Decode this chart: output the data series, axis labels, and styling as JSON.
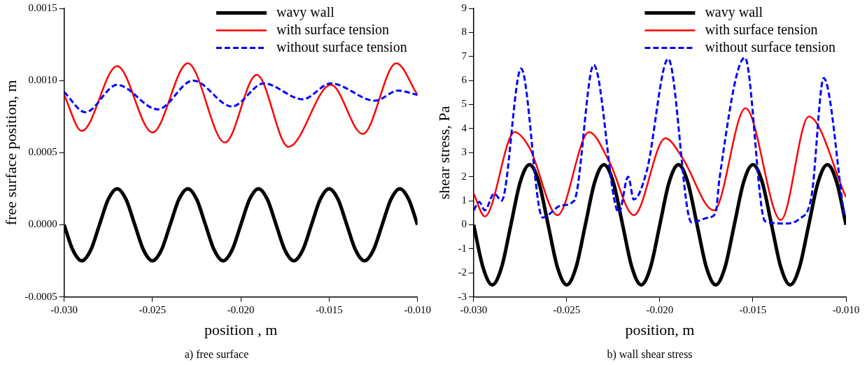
{
  "chart_data": [
    {
      "type": "line",
      "xlabel": "position , m",
      "ylabel": "free surface position, m",
      "xlim": [
        -0.03,
        -0.01
      ],
      "ylim": [
        -0.0005,
        0.0015
      ],
      "xticks": [
        {
          "value": -0.03,
          "label": "-0.030"
        },
        {
          "value": -0.025,
          "label": "-0.025"
        },
        {
          "value": -0.02,
          "label": "-0.020"
        },
        {
          "value": -0.015,
          "label": "-0.015"
        },
        {
          "value": -0.01,
          "label": "-0.010"
        }
      ],
      "yticks": [
        {
          "value": -0.0005,
          "label": "-0.0005"
        },
        {
          "value": 0,
          "label": "0.0000"
        },
        {
          "value": 0.0005,
          "label": "0.0005"
        },
        {
          "value": 0.001,
          "label": "0.0010"
        },
        {
          "value": 0.0015,
          "label": "0.0015"
        }
      ],
      "grid": false,
      "legend": "top right",
      "marker": "none",
      "annotations": [
        "a) free surface"
      ],
      "series": [
        {
          "name": "wavy wall",
          "color": "#000000",
          "line_style": "solid",
          "x": [
            -0.03,
            -0.0295,
            -0.029,
            -0.0285,
            -0.028,
            -0.0275,
            -0.027,
            -0.0265,
            -0.026,
            -0.0255,
            -0.025,
            -0.0245,
            -0.024,
            -0.0235,
            -0.023,
            -0.0225,
            -0.022,
            -0.0215,
            -0.021,
            -0.0205,
            -0.02,
            -0.0195,
            -0.019,
            -0.0185,
            -0.018,
            -0.0175,
            -0.017,
            -0.0165,
            -0.016,
            -0.0155,
            -0.015,
            -0.0145,
            -0.014,
            -0.0135,
            -0.013,
            -0.0125,
            -0.012,
            -0.0115,
            -0.011,
            -0.0105,
            -0.01
          ],
          "values": [
            0,
            -0.000177,
            -0.00025,
            -0.000177,
            0,
            0.000177,
            0.00025,
            0.000177,
            0,
            -0.000177,
            -0.00025,
            -0.000177,
            0,
            0.000177,
            0.00025,
            0.000177,
            0,
            -0.000177,
            -0.00025,
            -0.000177,
            0,
            0.000177,
            0.00025,
            0.000177,
            0,
            -0.000177,
            -0.00025,
            -0.000177,
            0,
            0.000177,
            0.00025,
            0.000177,
            0,
            -0.000177,
            -0.00025,
            -0.000177,
            0,
            0.000177,
            0.00025,
            0.000177,
            0
          ]
        },
        {
          "name": "with surface tension",
          "color": "#ff0000",
          "line_style": "solid",
          "x": [
            -0.03,
            -0.029,
            -0.027,
            -0.025,
            -0.023,
            -0.0209,
            -0.0191,
            -0.0173,
            -0.0149,
            -0.0131,
            -0.0112,
            -0.01
          ],
          "values": [
            0.0009,
            0.00065,
            0.0011,
            0.00064,
            0.00112,
            0.00057,
            0.00104,
            0.00054,
            0.00097,
            0.00063,
            0.00112,
            0.0009
          ]
        },
        {
          "name": "without surface tension",
          "color": "#0000ff",
          "line_style": "dashed",
          "x": [
            -0.03,
            -0.0288,
            -0.027,
            -0.0247,
            -0.0227,
            -0.0205,
            -0.0187,
            -0.0165,
            -0.0149,
            -0.0124,
            -0.0111,
            -0.01
          ],
          "values": [
            0.00092,
            0.00078,
            0.00097,
            0.0008,
            0.001,
            0.00082,
            0.00098,
            0.00087,
            0.00098,
            0.00086,
            0.00093,
            0.0009
          ]
        }
      ]
    },
    {
      "type": "line",
      "xlabel": "position, m",
      "ylabel": "shear stress, Pa",
      "xlim": [
        -0.03,
        -0.01
      ],
      "ylim": [
        -3,
        9
      ],
      "xticks": [
        {
          "value": -0.03,
          "label": "-0.030"
        },
        {
          "value": -0.025,
          "label": "-0.025"
        },
        {
          "value": -0.02,
          "label": "-0.020"
        },
        {
          "value": -0.015,
          "label": "-0.015"
        },
        {
          "value": -0.01,
          "label": "-0.010"
        }
      ],
      "yticks": [
        -3,
        -2,
        -1,
        0,
        1,
        2,
        3,
        4,
        5,
        6,
        7,
        8,
        9
      ],
      "grid": false,
      "legend": "top right",
      "marker": "none",
      "annotations": [
        "b) wall shear stress"
      ],
      "series": [
        {
          "name": "wavy wall",
          "color": "#000000",
          "line_style": "solid",
          "x": [
            -0.03,
            -0.0295,
            -0.029,
            -0.0285,
            -0.028,
            -0.0275,
            -0.027,
            -0.0265,
            -0.026,
            -0.0255,
            -0.025,
            -0.0245,
            -0.024,
            -0.0235,
            -0.023,
            -0.0225,
            -0.022,
            -0.0215,
            -0.021,
            -0.0205,
            -0.02,
            -0.0195,
            -0.019,
            -0.0185,
            -0.018,
            -0.0175,
            -0.017,
            -0.0165,
            -0.016,
            -0.0155,
            -0.015,
            -0.0145,
            -0.014,
            -0.0135,
            -0.013,
            -0.0125,
            -0.012,
            -0.0115,
            -0.011,
            -0.0105,
            -0.01
          ],
          "values": [
            0,
            -1.77,
            -2.5,
            -1.77,
            0,
            1.77,
            2.5,
            1.77,
            0,
            -1.77,
            -2.5,
            -1.77,
            0,
            1.77,
            2.5,
            1.77,
            0,
            -1.77,
            -2.5,
            -1.77,
            0,
            1.77,
            2.5,
            1.77,
            0,
            -1.77,
            -2.5,
            -1.77,
            0,
            1.77,
            2.5,
            1.77,
            0,
            -1.77,
            -2.5,
            -1.77,
            0,
            1.77,
            2.5,
            1.77,
            0
          ]
        },
        {
          "name": "with surface tension",
          "color": "#ff0000",
          "line_style": "solid",
          "x": [
            -0.03,
            -0.0294,
            -0.0278,
            -0.027,
            -0.0255,
            -0.0238,
            -0.0227,
            -0.0214,
            -0.0197,
            -0.0188,
            -0.0171,
            -0.0154,
            -0.0135,
            -0.012,
            -0.01
          ],
          "values": [
            1.3,
            0.35,
            3.85,
            3.2,
            0.4,
            3.85,
            2.6,
            0.4,
            3.6,
            2.8,
            0.6,
            4.85,
            0.2,
            4.5,
            1.15
          ]
        },
        {
          "name": "without surface tension",
          "color": "#0000ff",
          "line_style": "dashed",
          "x": [
            -0.03,
            -0.0297,
            -0.0294,
            -0.0289,
            -0.0285,
            -0.02745,
            -0.0263,
            -0.0253,
            -0.0246,
            -0.02355,
            -0.0222,
            -0.0217,
            -0.0214,
            -0.0207,
            -0.01955,
            -0.0183,
            -0.0174,
            -0.017,
            -0.0168,
            -0.01543,
            -0.01435,
            -0.0133,
            -0.0125,
            -0.01185,
            -0.0112,
            -0.0101
          ],
          "values": [
            0.6,
            0.95,
            0.6,
            1.3,
            1.0,
            6.5,
            0.3,
            0.8,
            1.0,
            6.65,
            0.5,
            2.0,
            1.05,
            2.25,
            6.9,
            0.1,
            0.3,
            0.5,
            1.9,
            6.95,
            0.15,
            0.05,
            0.25,
            1.2,
            6.1,
            0.4
          ]
        }
      ]
    }
  ]
}
